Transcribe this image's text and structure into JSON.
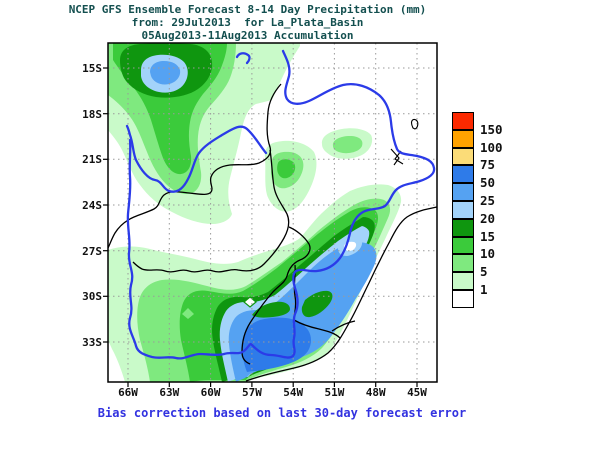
{
  "title": {
    "line1": "NCEP GFS Ensemble Forecast 8-14 Day Precipitation (mm)",
    "line2": "from: 29Jul2013  for La_Plata_Basin",
    "line3": "05Aug2013-11Aug2013 Accumulation"
  },
  "caption": "Bias correction based on last 30-day forecast error",
  "axes": {
    "lat_labels": [
      "15S",
      "18S",
      "21S",
      "24S",
      "27S",
      "30S",
      "33S"
    ],
    "lon_labels": [
      "66W",
      "63W",
      "60W",
      "57W",
      "54W",
      "51W",
      "48W",
      "45W"
    ]
  },
  "legend": {
    "levels": [
      "150",
      "100",
      "75",
      "50",
      "25",
      "20",
      "15",
      "10",
      "5",
      "1"
    ],
    "colors": [
      "#FB2900",
      "#FFA200",
      "#FBDC78",
      "#2E7BE9",
      "#55A2F2",
      "#A3D3FA",
      "#0F960F",
      "#3BCB3B",
      "#7FE97F",
      "#C9FAC9",
      "#FFFFFF"
    ]
  },
  "colors": {
    "title_text": "#134F4F",
    "caption_text": "#3232E0",
    "basin_outline": "#2B3BE8",
    "country_border": "#000000",
    "gridline": "#9a9a9a",
    "precip_1": "#C9FAC9",
    "precip_5": "#7FE97F",
    "precip_10": "#3BCB3B",
    "precip_15": "#0F960F",
    "precip_20": "#A3D3FA",
    "precip_25": "#55A2F2",
    "precip_50": "#2E7BE9"
  }
}
